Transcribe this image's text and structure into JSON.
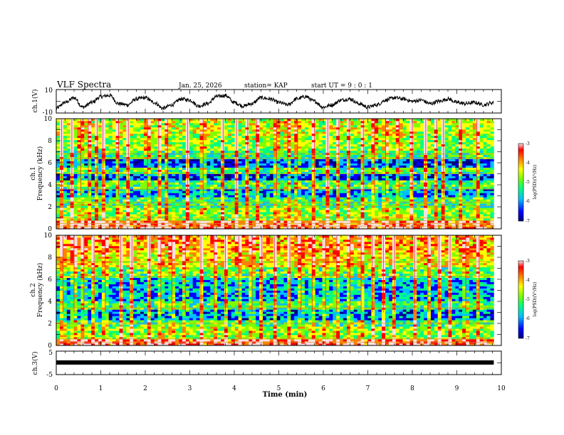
{
  "chart_data": {
    "type": "heatmap",
    "title": "VLF Spectra",
    "date": "Jan. 25, 2026",
    "station": "station= KAP",
    "start_ut": "start UT =  9 : 0 : 1",
    "xlabel": "Time (min)",
    "xlim": [
      0,
      10
    ],
    "x_ticks": [
      0,
      1,
      2,
      3,
      4,
      5,
      6,
      7,
      8,
      9,
      10
    ],
    "x_data_end": 9.83,
    "panels": [
      {
        "id": "ch1-waveform",
        "type": "line",
        "ylabel": "ch.1(V)",
        "ylim": [
          -10,
          10
        ],
        "y_ticks": [
          "10",
          "-10"
        ],
        "series": [
          {
            "name": "ch.1",
            "x": [
              0.0,
              0.2,
              0.4,
              0.6,
              0.8,
              1.0,
              1.2,
              1.4,
              1.6,
              1.8,
              2.0,
              2.2,
              2.4,
              2.6,
              2.8,
              3.0,
              3.2,
              3.4,
              3.6,
              3.8,
              4.0,
              4.2,
              4.4,
              4.6,
              4.8,
              5.0,
              5.2,
              5.4,
              5.6,
              5.8,
              6.0,
              6.2,
              6.4,
              6.6,
              6.8,
              7.0,
              7.2,
              7.4,
              7.6,
              7.8,
              8.0,
              8.2,
              8.4,
              8.6,
              8.8,
              9.0,
              9.2,
              9.4,
              9.6,
              9.83
            ],
            "values": [
              -6,
              -1,
              3,
              -5,
              -1,
              4,
              5,
              -2,
              -3,
              2,
              3,
              -1,
              -6,
              -3,
              2,
              1,
              -4,
              -2,
              4,
              5,
              -1,
              -4,
              -2,
              3,
              2,
              -1,
              -3,
              2,
              4,
              0,
              -5,
              -3,
              1,
              2,
              -2,
              -5,
              -3,
              1,
              3,
              2,
              0,
              1,
              -2,
              0,
              2,
              -1,
              -2,
              -1,
              -3,
              -1
            ]
          }
        ]
      },
      {
        "id": "ch1-spectrogram",
        "type": "heatmap",
        "ylabel_top": "ch.1",
        "ylabel": "Frequency (kHz)",
        "ylim": [
          0,
          10
        ],
        "y_ticks": [
          "0",
          "2",
          "4",
          "6",
          "8",
          "10"
        ],
        "colorbar_label": "log(PSD)(V²/Hz)",
        "colorbar_ticks": [
          "-3",
          "-4",
          "-5",
          "-6",
          "-7"
        ],
        "frequency_band_levels": [
          {
            "f_from": 0.0,
            "f_to": 0.7,
            "level": -3.8
          },
          {
            "f_from": 0.7,
            "f_to": 2.0,
            "level": -5.0
          },
          {
            "f_from": 2.0,
            "f_to": 2.8,
            "level": -5.4
          },
          {
            "f_from": 2.8,
            "f_to": 3.6,
            "level": -6.0
          },
          {
            "f_from": 3.6,
            "f_to": 4.4,
            "level": -5.3
          },
          {
            "f_from": 4.4,
            "f_to": 5.0,
            "level": -6.3
          },
          {
            "f_from": 5.0,
            "f_to": 5.6,
            "level": -5.3
          },
          {
            "f_from": 5.6,
            "f_to": 6.3,
            "level": -6.3
          },
          {
            "f_from": 6.3,
            "f_to": 7.2,
            "level": -5.4
          },
          {
            "f_from": 7.2,
            "f_to": 8.5,
            "level": -5.0
          },
          {
            "f_from": 8.5,
            "f_to": 10.0,
            "level": -4.8
          }
        ],
        "horizontal_lines_khz": [
          0.25,
          0.5,
          0.75,
          1.0,
          2.1,
          2.4,
          3.6,
          5.0,
          6.4,
          6.8
        ],
        "bursts_min": [
          0.12,
          0.35,
          0.55,
          0.72,
          0.92,
          1.05,
          1.4,
          1.62,
          2.05,
          2.3,
          2.5,
          2.95,
          3.3,
          3.75,
          4.05,
          4.3,
          4.5,
          4.95,
          5.2,
          5.42,
          5.8,
          6.1,
          6.35,
          6.58,
          6.9,
          7.15,
          7.4,
          7.7,
          8.0,
          8.3,
          8.55,
          8.7,
          9.1,
          9.45
        ]
      },
      {
        "id": "ch2-spectrogram",
        "type": "heatmap",
        "ylabel_top": "ch.2",
        "ylabel": "Frequency (kHz)",
        "ylim": [
          0,
          10
        ],
        "y_ticks": [
          "0",
          "2",
          "4",
          "6",
          "8",
          "10"
        ],
        "colorbar_label": "log(PSD)(V²/Hz)",
        "colorbar_ticks": [
          "-3",
          "-4",
          "-5",
          "-6",
          "-7"
        ],
        "frequency_band_levels": [
          {
            "f_from": 0.0,
            "f_to": 0.5,
            "level": -3.8
          },
          {
            "f_from": 0.5,
            "f_to": 1.8,
            "level": -5.0
          },
          {
            "f_from": 1.8,
            "f_to": 2.4,
            "level": -5.3
          },
          {
            "f_from": 2.4,
            "f_to": 3.2,
            "level": -6.1
          },
          {
            "f_from": 3.2,
            "f_to": 4.0,
            "level": -5.4
          },
          {
            "f_from": 4.0,
            "f_to": 6.2,
            "level": -5.9
          },
          {
            "f_from": 6.2,
            "f_to": 7.2,
            "level": -5.2
          },
          {
            "f_from": 7.2,
            "f_to": 8.5,
            "level": -4.6
          },
          {
            "f_from": 8.5,
            "f_to": 10.0,
            "level": -4.3
          }
        ],
        "horizontal_lines_khz": [
          0.3,
          0.6,
          2.0,
          3.4,
          6.3,
          7.6
        ],
        "bursts_min": [
          0.15,
          0.4,
          0.62,
          0.85,
          1.1,
          1.45,
          1.7,
          2.1,
          2.35,
          2.6,
          2.9,
          3.25,
          3.55,
          3.8,
          4.1,
          4.4,
          4.62,
          4.9,
          5.25,
          5.5,
          5.75,
          6.05,
          6.3,
          6.6,
          6.85,
          7.1,
          7.35,
          7.6,
          8.05,
          8.35,
          8.6,
          8.85,
          9.2,
          9.5
        ]
      },
      {
        "id": "ch3-waveform",
        "type": "line",
        "ylabel": "ch.3(V)",
        "ylim": [
          -5,
          5
        ],
        "y_ticks": [
          "5",
          "-5"
        ],
        "series": [
          {
            "name": "ch.3",
            "x": [
              0.0,
              9.83
            ],
            "values": [
              0,
              0
            ]
          }
        ]
      }
    ],
    "colorscale": {
      "min": -7,
      "max": -3,
      "colors": [
        "#00007f",
        "#0000ff",
        "#00bfff",
        "#00ff80",
        "#80ff00",
        "#ffff00",
        "#ff8000",
        "#ff0000",
        "#ffe0e0"
      ]
    }
  }
}
